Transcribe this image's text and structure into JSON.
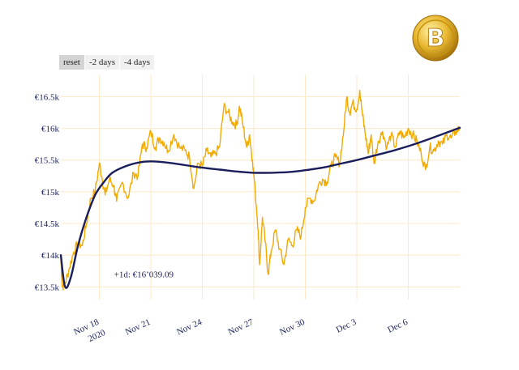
{
  "controls": {
    "buttons": [
      {
        "label": "reset",
        "active": true
      },
      {
        "label": "-2 days",
        "active": false
      },
      {
        "label": "-4 days",
        "active": false
      }
    ]
  },
  "logo": {
    "icon": "bitcoin-logo-icon",
    "symbol": "B",
    "color": "#d4a017"
  },
  "colors": {
    "price": "#f2a900",
    "trend": "#1a1f5c",
    "grid": "#fde8c8",
    "text": "#1a1f5c"
  },
  "chart_data": {
    "type": "line",
    "x_range": [
      "2020-11-15T18:00",
      "2020-12-09T00:00"
    ],
    "ylim": [
      13300,
      16850
    ],
    "y_ticks": [
      {
        "value": 13500,
        "label": "€13.5k"
      },
      {
        "value": 14000,
        "label": "€14k"
      },
      {
        "value": 14500,
        "label": "€14.5k"
      },
      {
        "value": 15000,
        "label": "€15k"
      },
      {
        "value": 15500,
        "label": "€15.5k"
      },
      {
        "value": 16000,
        "label": "€16k"
      },
      {
        "value": 16500,
        "label": "€16.5k"
      }
    ],
    "x_ticks": [
      {
        "date": "2020-11-18",
        "label": "Nov 18",
        "sublabel": "2020"
      },
      {
        "date": "2020-11-21",
        "label": "Nov 21",
        "sublabel": ""
      },
      {
        "date": "2020-11-24",
        "label": "Nov 24",
        "sublabel": ""
      },
      {
        "date": "2020-11-27",
        "label": "Nov 27",
        "sublabel": ""
      },
      {
        "date": "2020-11-30",
        "label": "Nov 30",
        "sublabel": ""
      },
      {
        "date": "2020-12-03",
        "label": "Dec 3",
        "sublabel": ""
      },
      {
        "date": "2020-12-06",
        "label": "Dec 6",
        "sublabel": ""
      }
    ],
    "annotation": {
      "text": "+1d: €16’039.09",
      "x": "2020-11-18T00:00",
      "y": 13700
    },
    "series": [
      {
        "type": "price",
        "points": [
          [
            "2020-11-15T18:00",
            13950
          ],
          [
            "2020-11-15T20:00",
            13500
          ],
          [
            "2020-11-16T00:00",
            13560
          ],
          [
            "2020-11-16T06:00",
            13800
          ],
          [
            "2020-11-16T12:00",
            14050
          ],
          [
            "2020-11-16T18:00",
            14180
          ],
          [
            "2020-11-17T00:00",
            14150
          ],
          [
            "2020-11-17T06:00",
            14500
          ],
          [
            "2020-11-17T12:00",
            14900
          ],
          [
            "2020-11-17T18:00",
            15000
          ],
          [
            "2020-11-18T00:00",
            15450
          ],
          [
            "2020-11-18T04:00",
            15200
          ],
          [
            "2020-11-18T08:00",
            14950
          ],
          [
            "2020-11-18T14:00",
            15200
          ],
          [
            "2020-11-18T20:00",
            15100
          ],
          [
            "2020-11-19T00:00",
            14850
          ],
          [
            "2020-11-19T08:00",
            15150
          ],
          [
            "2020-11-19T16:00",
            14900
          ],
          [
            "2020-11-20T00:00",
            15300
          ],
          [
            "2020-11-20T06:00",
            15250
          ],
          [
            "2020-11-20T12:00",
            15750
          ],
          [
            "2020-11-20T18:00",
            15700
          ],
          [
            "2020-11-21T00:00",
            15950
          ],
          [
            "2020-11-21T06:00",
            15700
          ],
          [
            "2020-11-21T12:00",
            15850
          ],
          [
            "2020-11-21T18:00",
            15780
          ],
          [
            "2020-11-22T00:00",
            15650
          ],
          [
            "2020-11-22T08:00",
            15900
          ],
          [
            "2020-11-22T16:00",
            15700
          ],
          [
            "2020-11-23T00:00",
            15650
          ],
          [
            "2020-11-23T06:00",
            15550
          ],
          [
            "2020-11-23T12:00",
            15050
          ],
          [
            "2020-11-23T18:00",
            15450
          ],
          [
            "2020-11-24T00:00",
            15400
          ],
          [
            "2020-11-24T06:00",
            15650
          ],
          [
            "2020-11-24T12:00",
            15550
          ],
          [
            "2020-11-24T18:00",
            15600
          ],
          [
            "2020-11-25T00:00",
            15700
          ],
          [
            "2020-11-25T06:00",
            16350
          ],
          [
            "2020-11-25T12:00",
            16250
          ],
          [
            "2020-11-25T18:00",
            16100
          ],
          [
            "2020-11-26T00:00",
            16050
          ],
          [
            "2020-11-26T04:00",
            16350
          ],
          [
            "2020-11-26T08:00",
            16100
          ],
          [
            "2020-11-26T14:00",
            15700
          ],
          [
            "2020-11-26T18:00",
            15900
          ],
          [
            "2020-11-26T22:00",
            15500
          ],
          [
            "2020-11-27T02:00",
            15000
          ],
          [
            "2020-11-27T06:00",
            14400
          ],
          [
            "2020-11-27T08:00",
            13850
          ],
          [
            "2020-11-27T12:00",
            14600
          ],
          [
            "2020-11-27T16:00",
            14200
          ],
          [
            "2020-11-27T20:00",
            13700
          ],
          [
            "2020-11-28T00:00",
            14050
          ],
          [
            "2020-11-28T06:00",
            14400
          ],
          [
            "2020-11-28T12:00",
            14100
          ],
          [
            "2020-11-28T18:00",
            13850
          ],
          [
            "2020-11-29T00:00",
            14250
          ],
          [
            "2020-11-29T06:00",
            14150
          ],
          [
            "2020-11-29T12:00",
            14400
          ],
          [
            "2020-11-29T18:00",
            14300
          ],
          [
            "2020-11-30T00:00",
            14750
          ],
          [
            "2020-11-30T06:00",
            14900
          ],
          [
            "2020-11-30T12:00",
            14850
          ],
          [
            "2020-11-30T18:00",
            15100
          ],
          [
            "2020-12-01T00:00",
            15200
          ],
          [
            "2020-12-01T06:00",
            15150
          ],
          [
            "2020-12-01T12:00",
            15400
          ],
          [
            "2020-12-01T18:00",
            15550
          ],
          [
            "2020-12-02T00:00",
            15450
          ],
          [
            "2020-12-02T06:00",
            16000
          ],
          [
            "2020-12-02T10:00",
            16500
          ],
          [
            "2020-12-02T14:00",
            16250
          ],
          [
            "2020-12-02T18:00",
            16400
          ],
          [
            "2020-12-03T00:00",
            16300
          ],
          [
            "2020-12-03T04:00",
            16600
          ],
          [
            "2020-12-03T08:00",
            16200
          ],
          [
            "2020-12-03T12:00",
            15900
          ],
          [
            "2020-12-03T16:00",
            15600
          ],
          [
            "2020-12-03T20:00",
            15900
          ],
          [
            "2020-12-04T00:00",
            15450
          ],
          [
            "2020-12-04T06:00",
            15800
          ],
          [
            "2020-12-04T12:00",
            15950
          ],
          [
            "2020-12-04T18:00",
            15700
          ],
          [
            "2020-12-05T00:00",
            15900
          ],
          [
            "2020-12-05T06:00",
            15700
          ],
          [
            "2020-12-05T12:00",
            15950
          ],
          [
            "2020-12-05T18:00",
            15850
          ],
          [
            "2020-12-06T00:00",
            16000
          ],
          [
            "2020-12-06T06:00",
            15900
          ],
          [
            "2020-12-06T12:00",
            15800
          ],
          [
            "2020-12-06T18:00",
            15600
          ],
          [
            "2020-12-07T00:00",
            15350
          ],
          [
            "2020-12-07T06:00",
            15700
          ],
          [
            "2020-12-07T12:00",
            15650
          ],
          [
            "2020-12-07T18:00",
            15800
          ],
          [
            "2020-12-08T00:00",
            15750
          ],
          [
            "2020-12-08T06:00",
            15900
          ],
          [
            "2020-12-08T12:00",
            15850
          ],
          [
            "2020-12-08T18:00",
            15950
          ],
          [
            "2020-12-09T00:00",
            16000
          ]
        ]
      },
      {
        "type": "trend",
        "points": [
          [
            "2020-11-15T18:00",
            14000
          ],
          [
            "2020-11-16T00:00",
            13500
          ],
          [
            "2020-11-16T08:00",
            13650
          ],
          [
            "2020-11-16T18:00",
            14150
          ],
          [
            "2020-11-17T06:00",
            14600
          ],
          [
            "2020-11-17T18:00",
            14950
          ],
          [
            "2020-11-18T06:00",
            15150
          ],
          [
            "2020-11-18T18:00",
            15300
          ],
          [
            "2020-11-19T12:00",
            15400
          ],
          [
            "2020-11-20T06:00",
            15460
          ],
          [
            "2020-11-21T00:00",
            15480
          ],
          [
            "2020-11-22T00:00",
            15460
          ],
          [
            "2020-11-23T00:00",
            15420
          ],
          [
            "2020-11-24T00:00",
            15380
          ],
          [
            "2020-11-25T00:00",
            15350
          ],
          [
            "2020-11-26T00:00",
            15320
          ],
          [
            "2020-11-27T00:00",
            15300
          ],
          [
            "2020-11-28T00:00",
            15300
          ],
          [
            "2020-11-29T00:00",
            15310
          ],
          [
            "2020-11-30T00:00",
            15340
          ],
          [
            "2020-12-01T00:00",
            15380
          ],
          [
            "2020-12-02T00:00",
            15440
          ],
          [
            "2020-12-03T00:00",
            15500
          ],
          [
            "2020-12-04T00:00",
            15570
          ],
          [
            "2020-12-05T00:00",
            15640
          ],
          [
            "2020-12-06T00:00",
            15720
          ],
          [
            "2020-12-07T00:00",
            15810
          ],
          [
            "2020-12-08T00:00",
            15910
          ],
          [
            "2020-12-09T00:00",
            16010
          ]
        ]
      }
    ]
  }
}
